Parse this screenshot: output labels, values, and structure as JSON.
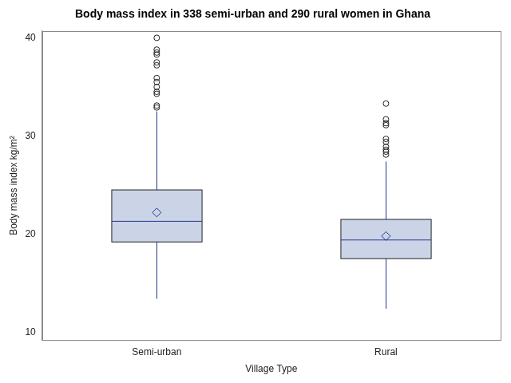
{
  "chart_data": {
    "type": "box",
    "title": "Body mass index in 338 semi-urban and 290 rural women in Ghana",
    "x_label": "Village Type",
    "y_label": "Body mass index kg/m²",
    "categories": [
      "Semi-urban",
      "Rural"
    ],
    "boxes": [
      {
        "min": 13.4,
        "q1": 19.2,
        "median": 21.3,
        "q3": 24.5,
        "max": 32.5,
        "mean": 22.2,
        "outliers": [
          40.0,
          38.8,
          38.5,
          38.3,
          37.5,
          37.2,
          35.9,
          35.5,
          35.0,
          34.5,
          34.3,
          33.1,
          32.9
        ]
      },
      {
        "min": 12.4,
        "q1": 17.5,
        "median": 19.4,
        "q3": 21.5,
        "max": 27.4,
        "mean": 19.8,
        "outliers": [
          33.3,
          31.7,
          31.3,
          31.1,
          29.7,
          29.4,
          28.9,
          28.6,
          28.4,
          28.1
        ]
      }
    ],
    "color": "#cbd4e7",
    "ylim": [
      9.2,
      40.7
    ],
    "yticks": [
      10,
      20,
      30,
      40
    ],
    "grid": false
  }
}
